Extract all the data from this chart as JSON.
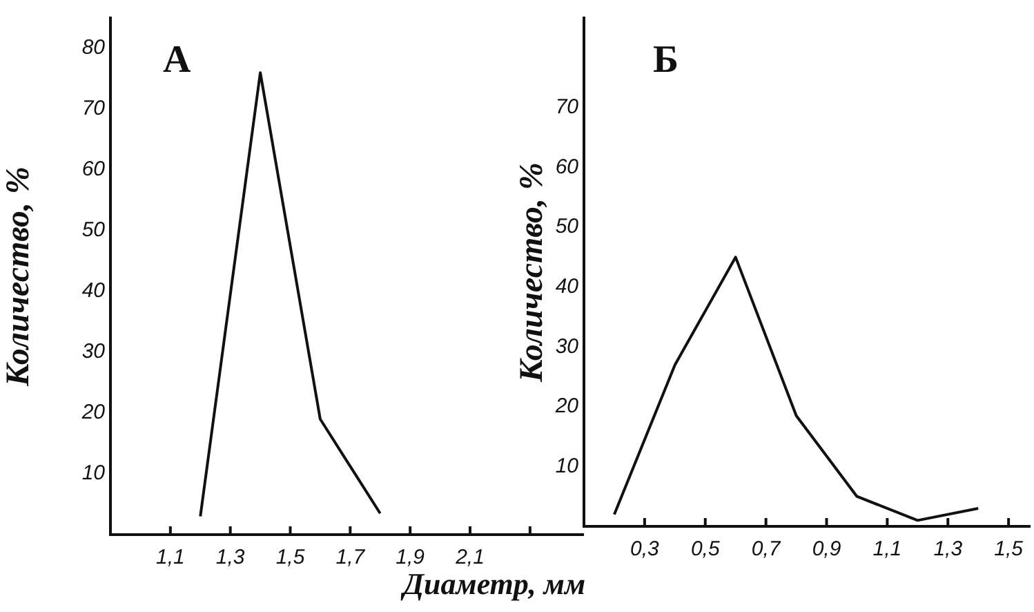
{
  "chart_data": [
    {
      "type": "line",
      "title": "А",
      "xlabel": "Диаметр, мм",
      "ylabel": "Количество, %",
      "xlim": [
        0.9,
        2.48
      ],
      "xticks": [
        {
          "value": 1.1,
          "label": "1,1"
        },
        {
          "value": 1.3,
          "label": "1,3"
        },
        {
          "value": 1.5,
          "label": "1,5"
        },
        {
          "value": 1.7,
          "label": "1,7"
        },
        {
          "value": 1.9,
          "label": "1,9"
        },
        {
          "value": 2.1,
          "label": "2,1"
        },
        {
          "value": 2.3,
          "label": null
        }
      ],
      "ylim": [
        0,
        85
      ],
      "yticks": [
        10,
        20,
        30,
        40,
        50,
        60,
        70,
        80
      ],
      "marker": "none",
      "series": [
        {
          "color": "#111111",
          "x": [
            1.2,
            1.4,
            1.6,
            1.8
          ],
          "values": [
            3,
            76,
            19,
            3.5
          ]
        }
      ]
    },
    {
      "type": "line",
      "title": "Б",
      "ylabel": "Количество, %",
      "xlim": [
        0.1,
        1.57
      ],
      "xticks": [
        {
          "value": 0.3,
          "label": "0,3"
        },
        {
          "value": 0.5,
          "label": "0,5"
        },
        {
          "value": 0.7,
          "label": "0,7"
        },
        {
          "value": 0.9,
          "label": "0,9"
        },
        {
          "value": 1.1,
          "label": "1,1"
        },
        {
          "value": 1.3,
          "label": "1,3"
        },
        {
          "value": 1.5,
          "label": "1,5"
        }
      ],
      "ylim": [
        0,
        85
      ],
      "yticks": [
        10,
        20,
        30,
        40,
        50,
        60,
        70
      ],
      "marker": "none",
      "series": [
        {
          "color": "#111111",
          "x": [
            0.2,
            0.4,
            0.6,
            0.8,
            1.0,
            1.2,
            1.4
          ],
          "values": [
            2,
            27,
            45,
            18.5,
            5,
            1,
            3
          ]
        }
      ]
    }
  ]
}
